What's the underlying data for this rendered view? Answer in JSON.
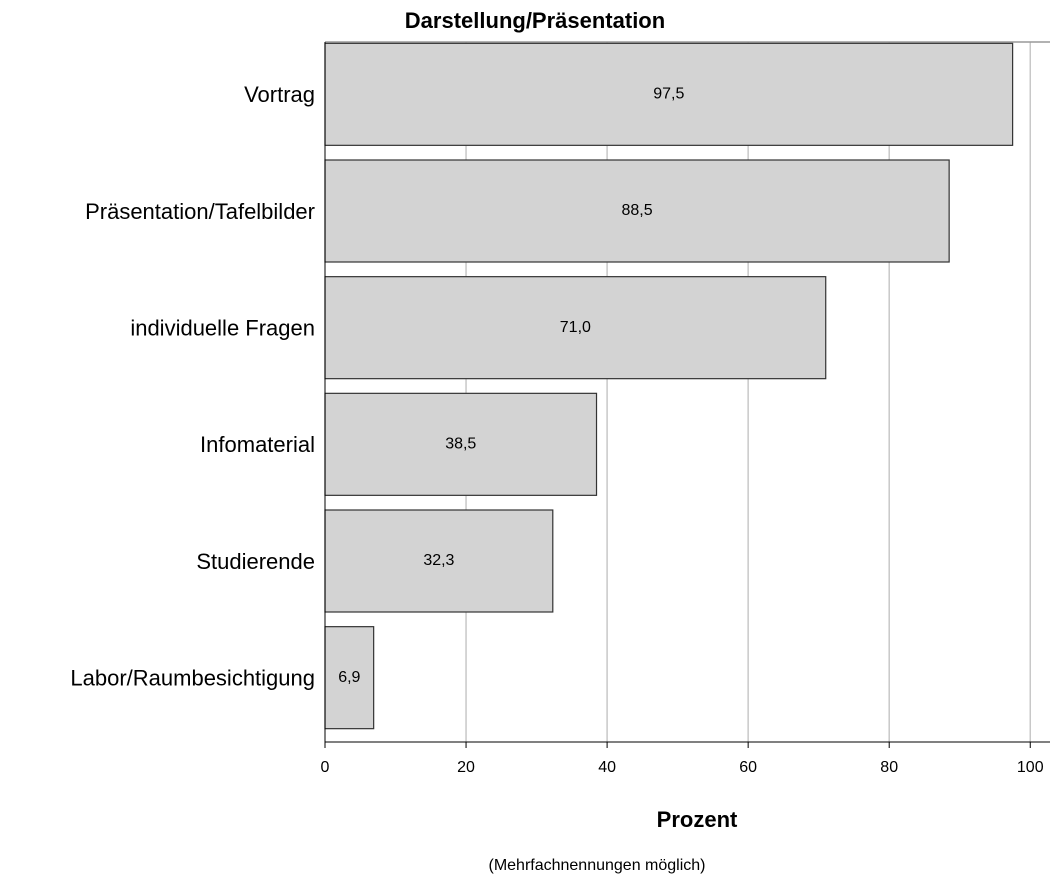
{
  "chart_data": {
    "type": "bar",
    "orientation": "horizontal",
    "title": "Darstellung/Präsentation",
    "categories": [
      "Vortrag",
      "Präsentation/Tafelbilder",
      "individuelle Fragen",
      "Infomaterial",
      "Studierende",
      "Labor/Raumbesichtigung"
    ],
    "values": [
      97.5,
      88.5,
      71.0,
      38.5,
      32.3,
      6.9
    ],
    "value_labels": [
      "97,5",
      "88,5",
      "71,0",
      "38,5",
      "32,3",
      "6,9"
    ],
    "color": "#d3d3d3",
    "xlabel": "Prozent",
    "note": "(Mehrfachnennungen möglich)",
    "xlim": [
      0,
      102.8
    ],
    "xticks": [
      0,
      20,
      40,
      60,
      80,
      100
    ],
    "grid": true
  }
}
